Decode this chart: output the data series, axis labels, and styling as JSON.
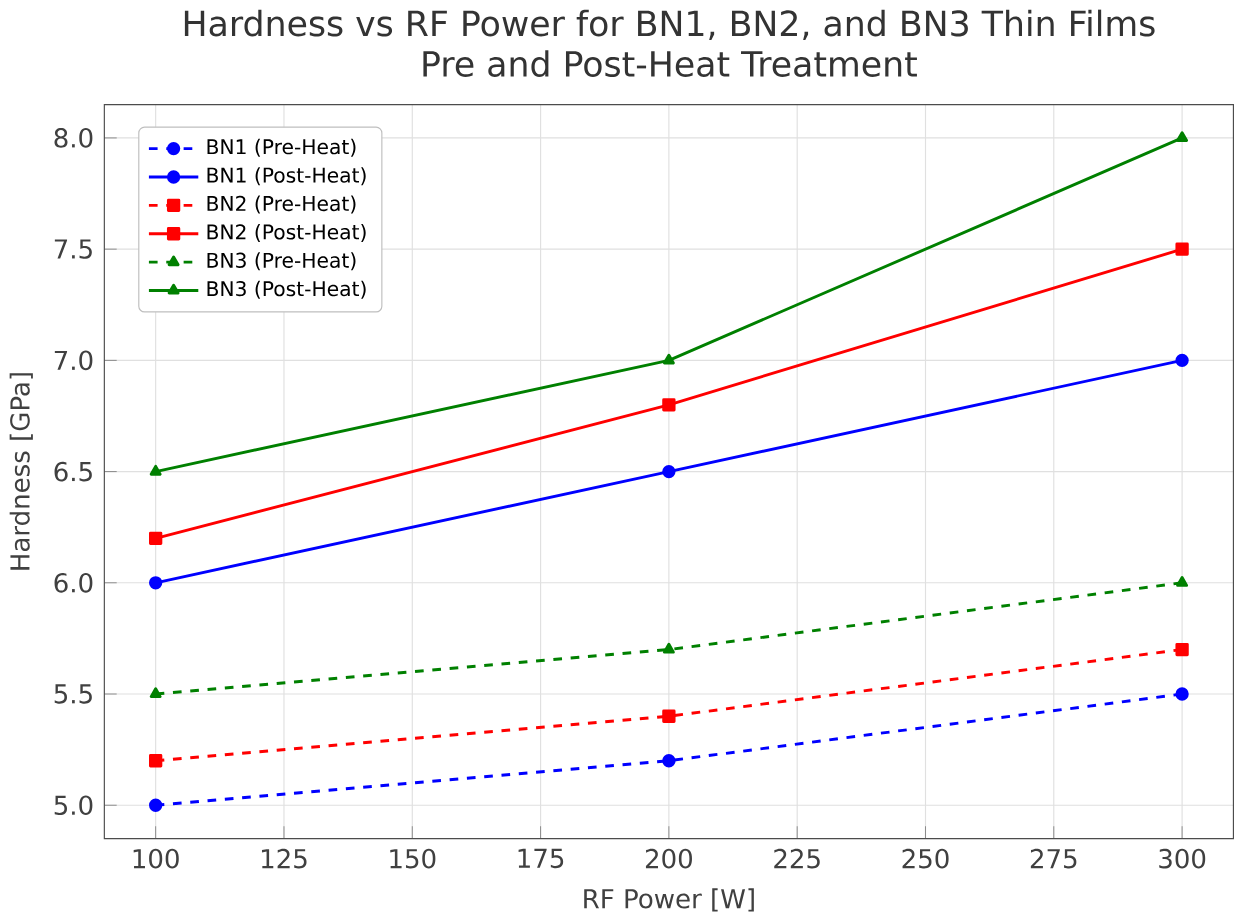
{
  "chart_data": {
    "type": "line",
    "title": "Hardness vs RF Power for BN1, BN2, and BN3 Thin Films\nPre and Post-Heat Treatment",
    "xlabel": "RF Power [W]",
    "ylabel": "Hardness [GPa]",
    "x": [
      100,
      200,
      300
    ],
    "series": [
      {
        "name": "BN1 (Pre-Heat)",
        "color": "#0000ff",
        "values": [
          5.0,
          5.2,
          5.5
        ],
        "marker": "circle",
        "line_style": "dashed"
      },
      {
        "name": "BN1 (Post-Heat)",
        "color": "#0000ff",
        "values": [
          6.0,
          6.5,
          7.0
        ],
        "marker": "circle",
        "line_style": "solid"
      },
      {
        "name": "BN2 (Pre-Heat)",
        "color": "#ff0000",
        "values": [
          5.2,
          5.4,
          5.7
        ],
        "marker": "square",
        "line_style": "dashed"
      },
      {
        "name": "BN2 (Post-Heat)",
        "color": "#ff0000",
        "values": [
          6.2,
          6.8,
          7.5
        ],
        "marker": "square",
        "line_style": "solid"
      },
      {
        "name": "BN3 (Pre-Heat)",
        "color": "#008000",
        "values": [
          5.5,
          5.7,
          6.0
        ],
        "marker": "triangle",
        "line_style": "dashed"
      },
      {
        "name": "BN3 (Post-Heat)",
        "color": "#008000",
        "values": [
          6.5,
          7.0,
          8.0
        ],
        "marker": "triangle",
        "line_style": "solid"
      }
    ],
    "xlim": [
      90,
      310
    ],
    "xticks": [
      100,
      125,
      150,
      175,
      200,
      225,
      250,
      275,
      300
    ],
    "ylim": [
      4.85,
      8.15
    ],
    "yticks": [
      {
        "value": 5,
        "label": "5.0"
      },
      5.5,
      {
        "value": 6,
        "label": "6.0"
      },
      6.5,
      {
        "value": 7,
        "label": "7.0"
      },
      7.5,
      {
        "value": 8,
        "label": "8.0"
      }
    ],
    "grid": true,
    "legend": "top left"
  }
}
